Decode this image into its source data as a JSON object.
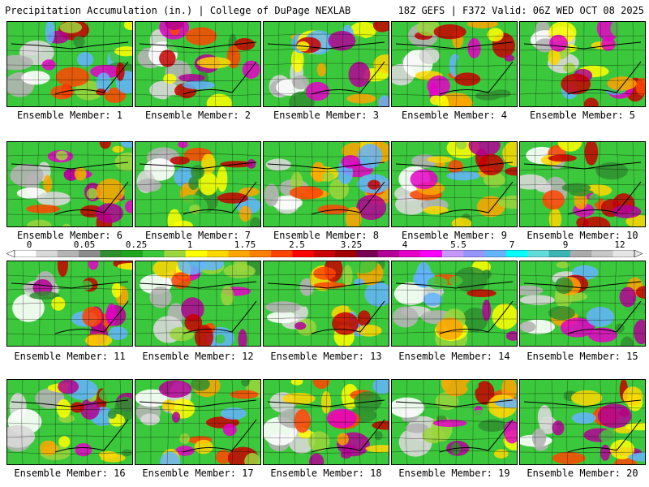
{
  "header": {
    "left": "Precipitation Accumulation (in.) | College of DuPage NEXLAB",
    "right": "18Z GEFS | F372 Valid: 06Z WED OCT 08 2025"
  },
  "colorbar": {
    "labels": [
      "0",
      "0.05",
      "0.25",
      "1",
      "1.75",
      "2.5",
      "3.25",
      "4",
      "5.5",
      "7",
      "9",
      "12"
    ],
    "colors": [
      "#ffffff",
      "#d8d8d8",
      "#b4b4b4",
      "#8c8c8c",
      "#2f8f2f",
      "#1fa51f",
      "#3cc83c",
      "#9bd63c",
      "#ffff00",
      "#ffd700",
      "#ffa500",
      "#ff7f00",
      "#ff4500",
      "#ff0000",
      "#c80000",
      "#a00000",
      "#780050",
      "#b40096",
      "#e600c8",
      "#ff00ff",
      "#c896ff",
      "#9696ff",
      "#64b4ff",
      "#00ffff",
      "#64dcdc",
      "#3cb4b4",
      "#aaaaaa",
      "#c8c8c8",
      "#e6e6e6"
    ]
  },
  "members": [
    {
      "label": "Ensemble Member: 1"
    },
    {
      "label": "Ensemble Member: 2"
    },
    {
      "label": "Ensemble Member: 3"
    },
    {
      "label": "Ensemble Member: 4"
    },
    {
      "label": "Ensemble Member: 5"
    },
    {
      "label": "Ensemble Member: 6"
    },
    {
      "label": "Ensemble Member: 7"
    },
    {
      "label": "Ensemble Member: 8"
    },
    {
      "label": "Ensemble Member: 9"
    },
    {
      "label": "Ensemble Member: 10"
    },
    {
      "label": "Ensemble Member: 11"
    },
    {
      "label": "Ensemble Member: 12"
    },
    {
      "label": "Ensemble Member: 13"
    },
    {
      "label": "Ensemble Member: 14"
    },
    {
      "label": "Ensemble Member: 15"
    },
    {
      "label": "Ensemble Member: 16"
    },
    {
      "label": "Ensemble Member: 17"
    },
    {
      "label": "Ensemble Member: 18"
    },
    {
      "label": "Ensemble Member: 19"
    },
    {
      "label": "Ensemble Member: 20"
    }
  ]
}
